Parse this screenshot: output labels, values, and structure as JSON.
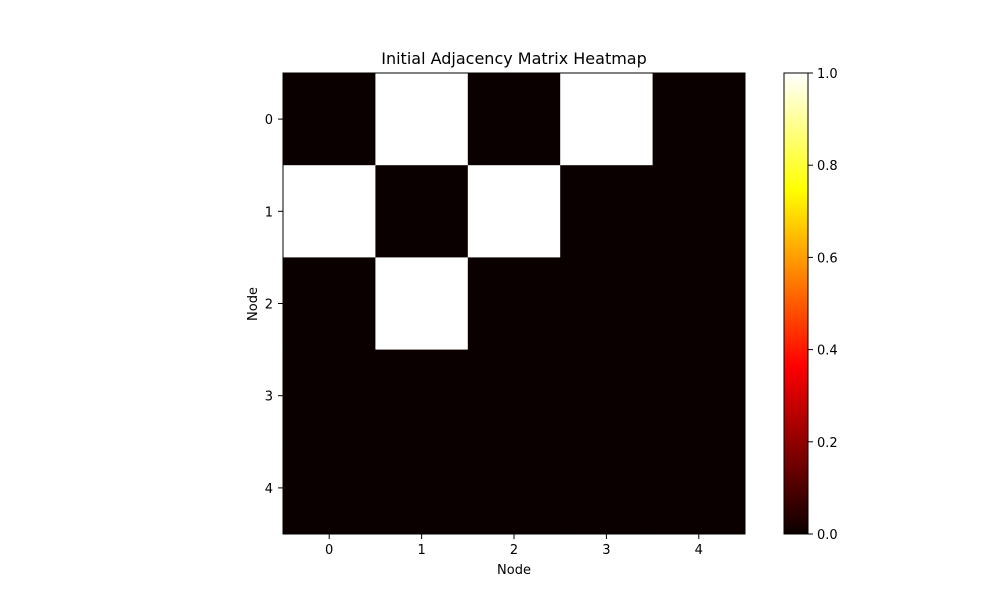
{
  "chart_data": {
    "type": "heatmap",
    "title": "Initial Adjacency Matrix Heatmap",
    "xlabel": "Node",
    "ylabel": "Node",
    "x_categories": [
      "0",
      "1",
      "2",
      "3",
      "4"
    ],
    "y_categories": [
      "0",
      "1",
      "2",
      "3",
      "4"
    ],
    "matrix": [
      [
        0,
        1,
        0,
        1,
        0
      ],
      [
        1,
        0,
        1,
        0,
        0
      ],
      [
        0,
        1,
        0,
        0,
        0
      ],
      [
        0,
        0,
        0,
        0,
        0
      ],
      [
        0,
        0,
        0,
        0,
        0
      ]
    ],
    "colormap": "hot",
    "colorbar": {
      "range": [
        0,
        1
      ],
      "ticks": [
        "0.0",
        "0.2",
        "0.4",
        "0.6",
        "0.8",
        "1.0"
      ]
    },
    "colors": {
      "low": "#0b0000",
      "high": "#ffffff"
    }
  }
}
